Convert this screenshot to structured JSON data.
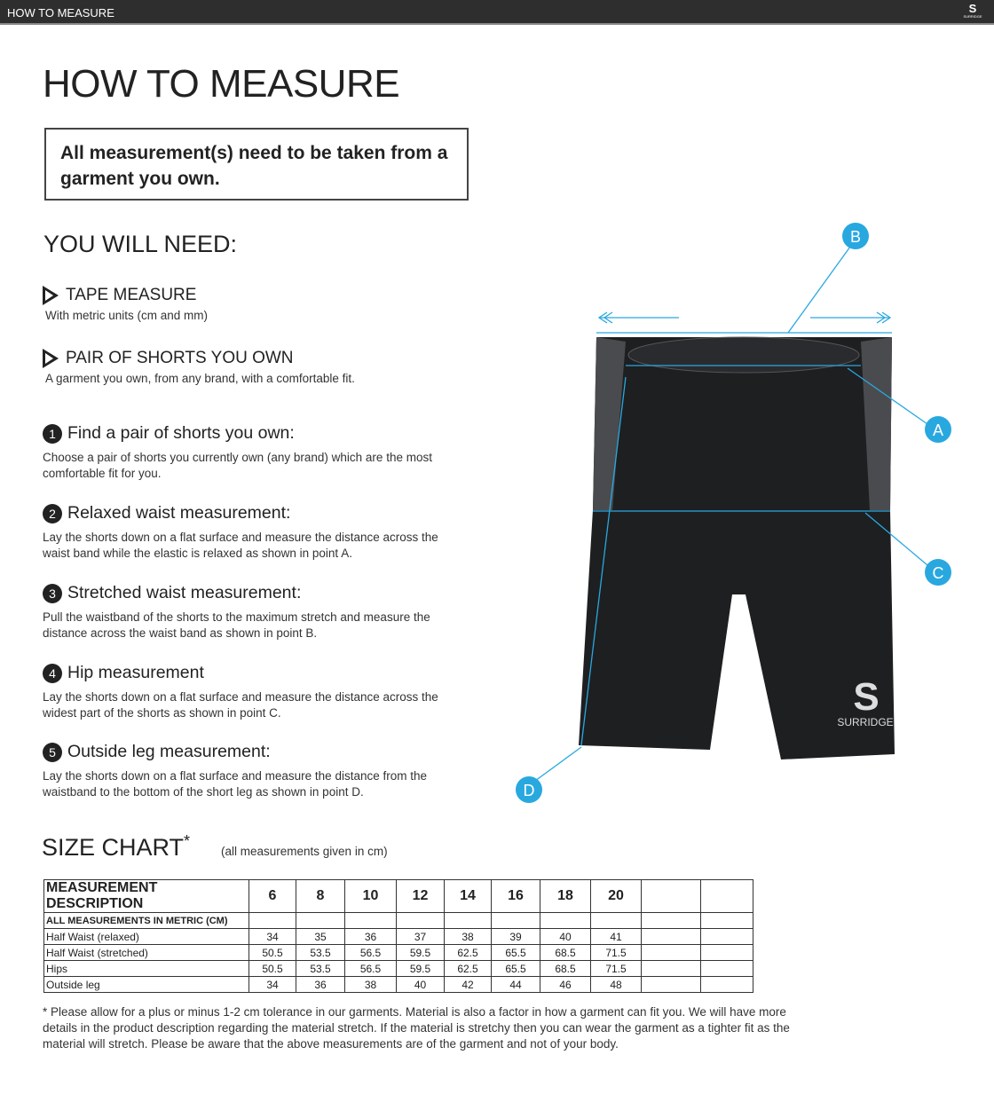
{
  "header": {
    "title": "HOW TO MEASURE",
    "logo_text": "SURRIDGE"
  },
  "page_title": "HOW TO MEASURE",
  "notice": "All measurement(s) need to be taken from a garment you own.",
  "you_will_need": {
    "title": "YOU WILL NEED:",
    "items": [
      {
        "title": "TAPE MEASURE",
        "desc": "With metric units (cm and mm)"
      },
      {
        "title": "PAIR OF SHORTS YOU OWN",
        "desc": "A garment you own, from any brand, with a comfortable fit."
      }
    ]
  },
  "steps": [
    {
      "num": "1",
      "title": "Find a pair of shorts you own:",
      "desc": "Choose a pair of shorts you currently own (any brand) which are the most comfortable fit for you."
    },
    {
      "num": "2",
      "title": "Relaxed waist measurement:",
      "desc": "Lay the shorts down on a flat surface and measure the distance across the waist band while the elastic is relaxed as shown in point A."
    },
    {
      "num": "3",
      "title": "Stretched waist measurement:",
      "desc": "Pull the waistband of the shorts to the maximum stretch and measure the distance across the waist band as shown in point B."
    },
    {
      "num": "4",
      "title": "Hip measurement",
      "desc": "Lay the shorts down on a flat surface and measure the distance across the widest part of the shorts as shown in point C."
    },
    {
      "num": "5",
      "title": "Outside leg measurement:",
      "desc": "Lay the shorts down on a flat surface and measure the distance from the waistband to the bottom of the short leg as shown in point D."
    }
  ],
  "diagram": {
    "labels": [
      "A",
      "B",
      "C",
      "D"
    ],
    "accent": "#29a8e0",
    "garment_text": "SURRIDGE"
  },
  "size_chart": {
    "title": "SIZE CHART",
    "asterisk": "*",
    "note": "(all measurements given in cm)",
    "header": [
      "MEASUREMENT DESCRIPTION",
      "6",
      "8",
      "10",
      "12",
      "14",
      "16",
      "18",
      "20",
      "",
      ""
    ],
    "subheader": "ALL MEASUREMENTS IN METRIC (CM)",
    "rows": [
      {
        "label": "Half Waist (relaxed)",
        "values": [
          "34",
          "35",
          "36",
          "37",
          "38",
          "39",
          "40",
          "41"
        ]
      },
      {
        "label": "Half Waist (stretched)",
        "values": [
          "50.5",
          "53.5",
          "56.5",
          "59.5",
          "62.5",
          "65.5",
          "68.5",
          "71.5"
        ]
      },
      {
        "label": "Hips",
        "values": [
          "50.5",
          "53.5",
          "56.5",
          "59.5",
          "62.5",
          "65.5",
          "68.5",
          "71.5"
        ]
      },
      {
        "label": "Outside leg",
        "values": [
          "34",
          "36",
          "38",
          "40",
          "42",
          "44",
          "46",
          "48"
        ]
      }
    ]
  },
  "footnote": "* Please allow for a plus or minus 1-2 cm tolerance in our garments. Material is also a factor in how a garment can fit you. We will have more details in the product description regarding the material stretch.  If the material is stretchy then you can wear the garment as a tighter fit as the material will stretch.  Please be aware that the above measurements are of the garment and not of your body."
}
